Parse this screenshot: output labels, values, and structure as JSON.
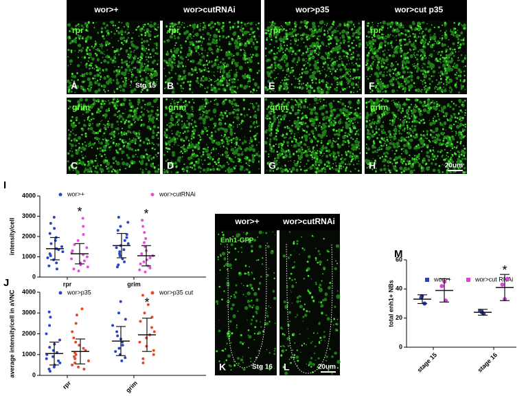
{
  "images": {
    "top_left": {
      "headers": [
        "wor>+",
        "wor>cutRNAi"
      ],
      "panels": [
        {
          "letter": "A",
          "probe": "rpr",
          "note": "Stg 15"
        },
        {
          "letter": "B",
          "probe": "rpr"
        },
        {
          "letter": "C",
          "probe": "grim"
        },
        {
          "letter": "D",
          "probe": "grim"
        }
      ]
    },
    "top_right": {
      "headers": [
        "wor>p35",
        "wor>cut p35"
      ],
      "panels": [
        {
          "letter": "E",
          "probe": "rpr"
        },
        {
          "letter": "F",
          "probe": "rpr"
        },
        {
          "letter": "G",
          "probe": "grim"
        },
        {
          "letter": "H",
          "probe": "grim",
          "note": "20um"
        }
      ]
    },
    "bottom": {
      "headers": [
        "wor>+",
        "wor>cutRNAi"
      ],
      "panels": [
        {
          "letter": "K",
          "probe": "Enh1-GFP",
          "note": "Stg 16"
        },
        {
          "letter": "L",
          "note": "20um"
        }
      ]
    }
  },
  "chart_data": [
    {
      "type": "dot",
      "panel_label": "I",
      "ylabel": "intensity/cell",
      "categories": [
        "rpr",
        "grim"
      ],
      "ylim": [
        0,
        4000
      ],
      "yticks": [
        0,
        1000,
        2000,
        3000,
        4000
      ],
      "series": [
        {
          "name": "wor>+",
          "color": "#2a45c8",
          "values": [
            [
              2950,
              2650,
              2400,
              2150,
              1950,
              1800,
              1650,
              1500,
              1400,
              1350,
              1250,
              1150,
              1050,
              950,
              850,
              700,
              550,
              400
            ],
            [
              2950,
              2700,
              2500,
              2300,
              2100,
              1950,
              1800,
              1650,
              1550,
              1450,
              1350,
              1250,
              1150,
              1050,
              900,
              750,
              600,
              500
            ]
          ],
          "mean": [
            1400,
            1550
          ],
          "sd": [
            550,
            600
          ],
          "significance_labels": [
            null,
            null
          ]
        },
        {
          "name": "wor>cutRNAi",
          "color": "#e24fe0",
          "values": [
            [
              2900,
              2500,
              2100,
              1800,
              1600,
              1450,
              1300,
              1200,
              1100,
              1000,
              900,
              800,
              700,
              600,
              500,
              400,
              300
            ],
            [
              2800,
              2500,
              2200,
              1900,
              1700,
              1500,
              1300,
              1150,
              1050,
              950,
              850,
              750,
              650,
              550,
              450,
              350,
              250
            ]
          ],
          "mean": [
            1150,
            1050
          ],
          "sd": [
            500,
            500
          ],
          "significance_labels": [
            "*",
            "*"
          ]
        }
      ]
    },
    {
      "type": "dot",
      "panel_label": "J",
      "ylabel": "average intensity/cell in aVNC",
      "categories": [
        "rpr",
        "grim"
      ],
      "ylim": [
        0,
        4000
      ],
      "yticks": [
        0,
        1000,
        2000,
        3000,
        4000
      ],
      "series": [
        {
          "name": "wor>p35",
          "color": "#2a45c8",
          "values": [
            [
              3050,
              2800,
              2400,
              2000,
              1700,
              1500,
              1350,
              1200,
              1100,
              1000,
              900,
              800,
              700,
              600,
              500,
              400,
              300,
              200
            ],
            [
              3550,
              3000,
              2700,
              2400,
              2100,
              1900,
              1750,
              1600,
              1450,
              1300,
              1150,
              1000,
              850,
              700
            ]
          ],
          "mean": [
            1050,
            1650
          ],
          "sd": [
            550,
            700
          ],
          "significance_labels": [
            null,
            null
          ]
        },
        {
          "name": "wor>p35 cut",
          "color": "#e6492a",
          "values": [
            [
              3200,
              2900,
              2500,
              2100,
              1800,
              1600,
              1450,
              1300,
              1200,
              1100,
              1000,
              900,
              800,
              700,
              600,
              500,
              400,
              300
            ],
            [
              3850,
              3400,
              3000,
              2800,
              2600,
              2300,
              2100,
              1950,
              1800,
              1600,
              1400,
              1200,
              1000,
              800,
              600
            ]
          ],
          "mean": [
            1150,
            1950
          ],
          "sd": [
            600,
            800
          ],
          "significance_labels": [
            null,
            "*"
          ]
        }
      ]
    },
    {
      "type": "dot",
      "panel_label": "M",
      "ylabel": "total enh1+ NBs",
      "categories": [
        "stage 15",
        "stage 16"
      ],
      "ylim": [
        0,
        60
      ],
      "yticks": [
        0,
        20,
        40,
        60
      ],
      "series": [
        {
          "name": "wor>+",
          "color": "#2a3fb8",
          "values": [
            [
              30,
              34,
              35
            ],
            [
              23,
              25,
              24
            ]
          ],
          "mean": [
            33,
            24
          ],
          "sd": [
            3,
            2
          ],
          "significance_labels": [
            null,
            null
          ]
        },
        {
          "name": "wor>cut RNAi",
          "color": "#e040e0",
          "values": [
            [
              45,
              32,
              42
            ],
            [
              33,
              47,
              43
            ]
          ],
          "mean": [
            39,
            41
          ],
          "sd": [
            8,
            9
          ],
          "significance_labels": [
            null,
            "*"
          ]
        }
      ]
    }
  ]
}
